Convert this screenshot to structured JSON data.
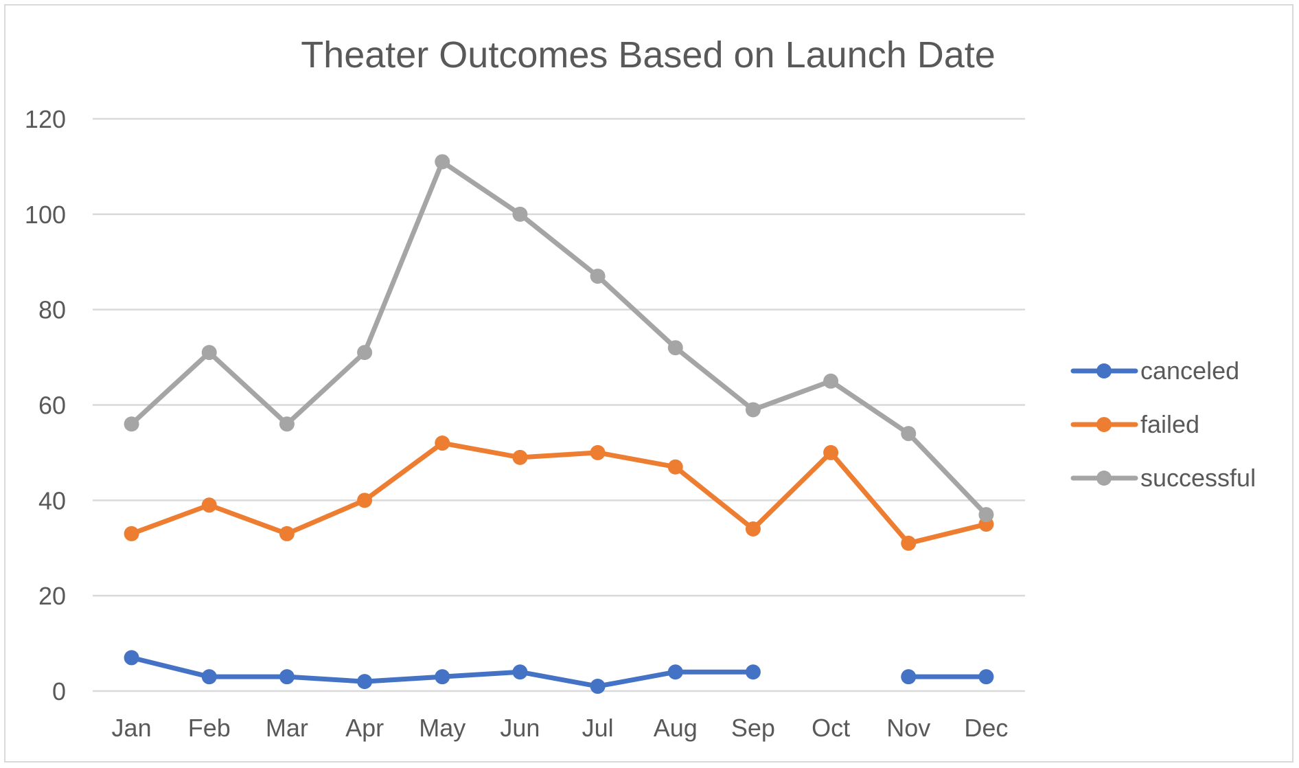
{
  "chart_data": {
    "type": "line",
    "title": "Theater Outcomes Based on Launch Date",
    "xlabel": "",
    "ylabel": "",
    "ylim": [
      0,
      120
    ],
    "yticks": [
      0,
      20,
      40,
      60,
      80,
      100,
      120
    ],
    "categories": [
      "Jan",
      "Feb",
      "Mar",
      "Apr",
      "May",
      "Jun",
      "Jul",
      "Aug",
      "Sep",
      "Oct",
      "Nov",
      "Dec"
    ],
    "series": [
      {
        "name": "canceled",
        "color": "#4472C4",
        "values": [
          7,
          3,
          3,
          2,
          3,
          4,
          1,
          4,
          4,
          null,
          3,
          3
        ]
      },
      {
        "name": "failed",
        "color": "#ED7D31",
        "values": [
          33,
          39,
          33,
          40,
          52,
          49,
          50,
          47,
          34,
          50,
          31,
          35
        ]
      },
      {
        "name": "successful",
        "color": "#A5A5A5",
        "values": [
          56,
          71,
          56,
          71,
          111,
          100,
          87,
          72,
          59,
          65,
          54,
          37
        ]
      }
    ],
    "grid": true,
    "legend": "right"
  }
}
